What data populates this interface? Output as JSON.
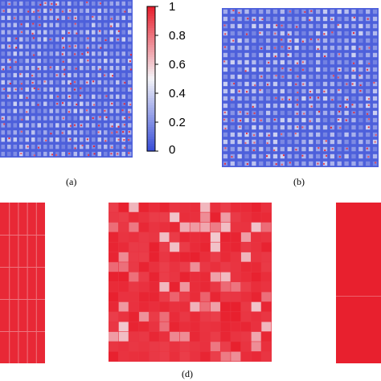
{
  "colors": {
    "low": "#3a4fd8",
    "mid": "#f4f4f8",
    "high": "#e8202e"
  },
  "chart_data": [
    {
      "type": "heatmap",
      "panel_label": "(a)",
      "matrix_description": "block-structured matrix, near-zero background with sparse high entries",
      "value_range": [
        0,
        1
      ],
      "background_value": 0.05,
      "block_grid": [
        22,
        22
      ]
    },
    {
      "type": "heatmap",
      "panel_label": "(b)",
      "matrix_description": "block-structured matrix, near-zero background with sparse high entries",
      "value_range": [
        0,
        1
      ],
      "background_value": 0.05,
      "block_grid": [
        22,
        22
      ]
    },
    {
      "type": "heatmap",
      "panel_label": "",
      "matrix_description": "mostly saturated matrix",
      "value_range": [
        0,
        1
      ],
      "background_value": 0.98,
      "block_grid": [
        5,
        5
      ]
    },
    {
      "type": "heatmap",
      "panel_label": "(d)",
      "matrix_description": "mostly saturated matrix with lighter blocks",
      "value_range": [
        0,
        1
      ],
      "background_value": 0.95,
      "block_grid": [
        16,
        16
      ]
    },
    {
      "type": "heatmap",
      "panel_label": "",
      "matrix_description": "fully saturated matrix",
      "value_range": [
        0,
        1
      ],
      "background_value": 1.0,
      "block_grid": [
        1,
        1
      ]
    }
  ],
  "colorbar": {
    "ticks": [
      "1",
      "0.8",
      "0.6",
      "0.4",
      "0.2",
      "0"
    ],
    "range": [
      0,
      1
    ]
  }
}
